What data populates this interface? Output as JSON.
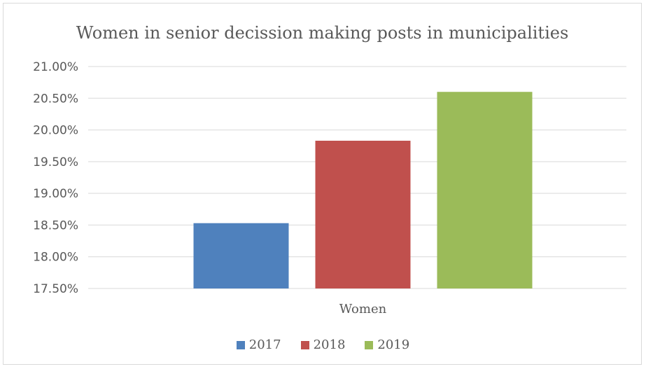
{
  "chart_data": {
    "type": "bar",
    "title": "Women in senior decission making posts in municipalities",
    "categories": [
      "Women"
    ],
    "series": [
      {
        "name": "2017",
        "values": [
          18.53
        ],
        "color": "#4f81bd"
      },
      {
        "name": "2018",
        "values": [
          19.83
        ],
        "color": "#c0504d"
      },
      {
        "name": "2019",
        "values": [
          20.6
        ],
        "color": "#9bbb59"
      }
    ],
    "ylim": [
      17.5,
      21.0
    ],
    "yticks": [
      "17.50%",
      "18.00%",
      "18.50%",
      "19.00%",
      "19.50%",
      "20.00%",
      "20.50%",
      "21.00%"
    ],
    "ytick_values": [
      17.5,
      18.0,
      18.5,
      19.0,
      19.5,
      20.0,
      20.5,
      21.0
    ],
    "grid": true,
    "legend_position": "bottom"
  }
}
